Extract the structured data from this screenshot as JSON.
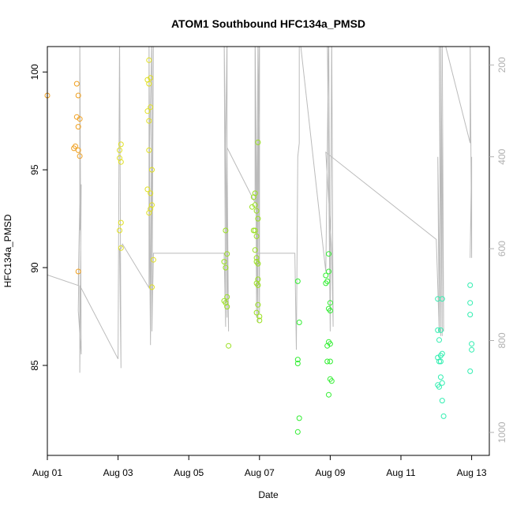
{
  "chart_data": {
    "type": "scatter",
    "title": "ATOM1 Southbound HFC134a_PMSD",
    "xlabel": "Date",
    "ylabel": "HFC134a_PMSD",
    "xlim": [
      "2016-08-01 00:00",
      "2016-08-13 12:00"
    ],
    "ylim": [
      80.4,
      101.3
    ],
    "x_ticks": [
      {
        "x": "2016-08-01",
        "label": "Aug 01"
      },
      {
        "x": "2016-08-03",
        "label": "Aug 03"
      },
      {
        "x": "2016-08-05",
        "label": "Aug 05"
      },
      {
        "x": "2016-08-07",
        "label": "Aug 07"
      },
      {
        "x": "2016-08-09",
        "label": "Aug 09"
      },
      {
        "x": "2016-08-11",
        "label": "Aug 11"
      },
      {
        "x": "2016-08-13",
        "label": "Aug 13"
      }
    ],
    "y_ticks": [
      85,
      90,
      95,
      100
    ],
    "y2_ticks": [
      200,
      400,
      600,
      800,
      1000
    ],
    "y2lim": [
      160,
      1050
    ],
    "grid": false,
    "legend": "none",
    "series": [
      {
        "color": "#f0a020",
        "points": [
          [
            "2016-08-01 00:00",
            98.8
          ],
          [
            "2016-08-01 20:00",
            99.4
          ],
          [
            "2016-08-01 21:00",
            98.8
          ],
          [
            "2016-08-01 20:00",
            97.7
          ],
          [
            "2016-08-01 22:00",
            97.6
          ],
          [
            "2016-08-01 21:00",
            97.2
          ],
          [
            "2016-08-01 19:00",
            96.2
          ],
          [
            "2016-08-01 18:00",
            96.1
          ],
          [
            "2016-08-01 21:00",
            96.0
          ],
          [
            "2016-08-01 22:00",
            95.7
          ],
          [
            "2016-08-01 21:00",
            89.8
          ]
        ]
      },
      {
        "color": "#e0e020",
        "points": [
          [
            "2016-08-03 02:00",
            96.3
          ],
          [
            "2016-08-03 01:00",
            96.0
          ],
          [
            "2016-08-03 01:00",
            95.6
          ],
          [
            "2016-08-03 02:00",
            95.4
          ],
          [
            "2016-08-03 02:00",
            92.3
          ],
          [
            "2016-08-03 01:00",
            91.9
          ],
          [
            "2016-08-03 02:00",
            91.0
          ],
          [
            "2016-08-03 21:00",
            100.6
          ],
          [
            "2016-08-03 22:00",
            99.7
          ],
          [
            "2016-08-03 20:00",
            99.6
          ],
          [
            "2016-08-03 21:00",
            99.4
          ],
          [
            "2016-08-03 22:00",
            98.2
          ],
          [
            "2016-08-03 20:00",
            98.0
          ],
          [
            "2016-08-03 21:00",
            97.5
          ],
          [
            "2016-08-03 21:00",
            96.0
          ],
          [
            "2016-08-03 23:00",
            95.0
          ],
          [
            "2016-08-03 20:00",
            94.0
          ],
          [
            "2016-08-03 22:00",
            93.8
          ],
          [
            "2016-08-03 23:00",
            93.2
          ],
          [
            "2016-08-03 22:00",
            93.0
          ],
          [
            "2016-08-03 21:00",
            92.8
          ],
          [
            "2016-08-04 00:00",
            90.4
          ],
          [
            "2016-08-03 23:00",
            89.0
          ]
        ]
      },
      {
        "color": "#9ae020",
        "points": [
          [
            "2016-08-06 01:00",
            91.9
          ],
          [
            "2016-08-06 02:00",
            90.7
          ],
          [
            "2016-08-06 00:00",
            90.3
          ],
          [
            "2016-08-06 01:00",
            90.0
          ],
          [
            "2016-08-06 02:00",
            88.5
          ],
          [
            "2016-08-06 00:00",
            88.3
          ],
          [
            "2016-08-06 01:00",
            88.2
          ],
          [
            "2016-08-06 02:00",
            88.0
          ],
          [
            "2016-08-06 03:00",
            86.0
          ],
          [
            "2016-08-06 23:00",
            96.4
          ],
          [
            "2016-08-06 21:00",
            93.8
          ],
          [
            "2016-08-06 20:00",
            93.6
          ],
          [
            "2016-08-06 21:00",
            93.2
          ],
          [
            "2016-08-06 19:00",
            93.1
          ],
          [
            "2016-08-06 22:00",
            92.9
          ],
          [
            "2016-08-06 23:00",
            92.5
          ],
          [
            "2016-08-06 20:00",
            91.9
          ],
          [
            "2016-08-06 21:00",
            91.9
          ],
          [
            "2016-08-06 22:00",
            91.6
          ],
          [
            "2016-08-06 21:00",
            90.9
          ],
          [
            "2016-08-06 22:00",
            90.5
          ],
          [
            "2016-08-06 22:00",
            90.3
          ],
          [
            "2016-08-06 23:00",
            90.2
          ],
          [
            "2016-08-06 23:00",
            89.4
          ],
          [
            "2016-08-06 22:00",
            89.2
          ],
          [
            "2016-08-06 23:00",
            89.1
          ],
          [
            "2016-08-06 23:00",
            88.1
          ],
          [
            "2016-08-06 22:00",
            87.7
          ],
          [
            "2016-08-07 00:00",
            87.5
          ],
          [
            "2016-08-07 00:00",
            87.3
          ]
        ]
      },
      {
        "color": "#30ee30",
        "points": [
          [
            "2016-08-08 02:00",
            89.3
          ],
          [
            "2016-08-08 03:00",
            87.2
          ],
          [
            "2016-08-08 02:00",
            85.3
          ],
          [
            "2016-08-08 02:00",
            85.1
          ],
          [
            "2016-08-08 03:00",
            82.3
          ],
          [
            "2016-08-08 02:00",
            81.6
          ],
          [
            "2016-08-08 23:00",
            90.7
          ],
          [
            "2016-08-08 23:00",
            89.8
          ],
          [
            "2016-08-08 21:00",
            89.6
          ],
          [
            "2016-08-08 22:00",
            89.3
          ],
          [
            "2016-08-08 21:00",
            89.2
          ],
          [
            "2016-08-09 00:00",
            88.2
          ],
          [
            "2016-08-08 23:00",
            87.9
          ],
          [
            "2016-08-09 00:00",
            87.8
          ],
          [
            "2016-08-08 23:00",
            86.2
          ],
          [
            "2016-08-09 00:00",
            86.1
          ],
          [
            "2016-08-08 22:00",
            86.0
          ],
          [
            "2016-08-08 22:00",
            85.2
          ],
          [
            "2016-08-09 00:00",
            85.2
          ],
          [
            "2016-08-09 00:00",
            84.3
          ],
          [
            "2016-08-09 01:00",
            84.2
          ],
          [
            "2016-08-08 23:00",
            83.5
          ]
        ]
      },
      {
        "color": "#30eeb0",
        "points": [
          [
            "2016-08-12 01:00",
            88.4
          ],
          [
            "2016-08-12 04:00",
            88.4
          ],
          [
            "2016-08-12 01:00",
            86.8
          ],
          [
            "2016-08-12 03:00",
            86.8
          ],
          [
            "2016-08-12 02:00",
            86.3
          ],
          [
            "2016-08-12 04:00",
            85.6
          ],
          [
            "2016-08-12 03:00",
            85.5
          ],
          [
            "2016-08-12 01:00",
            85.4
          ],
          [
            "2016-08-12 03:00",
            85.2
          ],
          [
            "2016-08-12 02:00",
            85.2
          ],
          [
            "2016-08-12 03:00",
            84.4
          ],
          [
            "2016-08-12 04:00",
            84.1
          ],
          [
            "2016-08-12 01:00",
            84.0
          ],
          [
            "2016-08-12 02:00",
            83.9
          ],
          [
            "2016-08-12 04:00",
            83.2
          ],
          [
            "2016-08-12 05:00",
            82.4
          ],
          [
            "2016-08-12 23:00",
            89.1
          ],
          [
            "2016-08-12 23:00",
            88.2
          ],
          [
            "2016-08-12 23:00",
            87.6
          ],
          [
            "2016-08-13 00:00",
            86.1
          ],
          [
            "2016-08-13 00:00",
            85.8
          ],
          [
            "2016-08-12 23:00",
            84.7
          ]
        ]
      }
    ],
    "secondary_line": {
      "color": "#bbbbbb",
      "axis": "right",
      "points": [
        [
          "2016-08-01 00:00",
          657
        ],
        [
          "2016-08-01 21:00",
          680
        ],
        [
          "2016-08-01 22:00",
          500
        ],
        [
          "2016-08-01 21:00",
          735
        ],
        [
          "2016-08-01 23:00",
          830
        ],
        [
          "2016-08-01 22:00",
          130
        ],
        [
          "2016-08-01 22:00",
          560
        ],
        [
          "2016-08-01 23:00",
          460
        ],
        [
          "2016-08-01 22:00",
          870
        ],
        [
          "2016-08-01 22:00",
          680
        ],
        [
          "2016-08-03 00:00",
          840
        ],
        [
          "2016-08-03 01:00",
          130
        ],
        [
          "2016-08-03 02:00",
          860
        ],
        [
          "2016-08-03 01:00",
          600
        ],
        [
          "2016-08-03 02:00",
          600
        ],
        [
          "2016-08-03 03:00",
          590
        ],
        [
          "2016-08-03 21:00",
          685
        ],
        [
          "2016-08-03 21:00",
          130
        ],
        [
          "2016-08-03 22:00",
          810
        ],
        [
          "2016-08-03 21:00",
          450
        ],
        [
          "2016-08-03 23:00",
          130
        ],
        [
          "2016-08-03 22:00",
          800
        ],
        [
          "2016-08-04 00:00",
          130
        ],
        [
          "2016-08-03 23:00",
          780
        ],
        [
          "2016-08-04 00:00",
          610
        ],
        [
          "2016-08-06 00:00",
          610
        ],
        [
          "2016-08-06 01:00",
          770
        ],
        [
          "2016-08-06 00:00",
          130
        ],
        [
          "2016-08-06 02:00",
          750
        ],
        [
          "2016-08-06 02:00",
          130
        ],
        [
          "2016-08-06 01:00",
          380
        ],
        [
          "2016-08-06 03:00",
          780
        ],
        [
          "2016-08-06 02:00",
          380
        ],
        [
          "2016-08-06 21:00",
          500
        ],
        [
          "2016-08-06 21:00",
          130
        ],
        [
          "2016-08-06 22:00",
          740
        ],
        [
          "2016-08-06 21:00",
          130
        ],
        [
          "2016-08-06 23:00",
          760
        ],
        [
          "2016-08-06 23:00",
          130
        ],
        [
          "2016-08-06 22:00",
          750
        ],
        [
          "2016-08-07 00:00",
          130
        ],
        [
          "2016-08-07 00:00",
          740
        ],
        [
          "2016-08-06 23:00",
          130
        ],
        [
          "2016-08-07 00:00",
          640
        ],
        [
          "2016-08-06 22:00",
          610
        ],
        [
          "2016-08-06 23:00",
          610
        ],
        [
          "2016-08-08 00:00",
          610
        ],
        [
          "2016-08-08 01:00",
          820
        ],
        [
          "2016-08-08 02:00",
          400
        ],
        [
          "2016-08-08 03:00",
          370
        ],
        [
          "2016-08-08 03:00",
          130
        ],
        [
          "2016-08-08 21:00",
          650
        ],
        [
          "2016-08-08 23:00",
          130
        ],
        [
          "2016-08-09 00:00",
          780
        ],
        [
          "2016-08-08 22:00",
          130
        ],
        [
          "2016-08-09 00:00",
          780
        ],
        [
          "2016-08-09 01:00",
          130
        ],
        [
          "2016-08-09 02:00",
          770
        ],
        [
          "2016-08-09 01:00",
          600
        ],
        [
          "2016-08-08 21:00",
          390
        ],
        [
          "2016-08-12 00:00",
          580
        ],
        [
          "2016-08-12 02:00",
          780
        ],
        [
          "2016-08-12 01:00",
          400
        ],
        [
          "2016-08-12 03:00",
          790
        ],
        [
          "2016-08-12 02:00",
          130
        ],
        [
          "2016-08-12 04:00",
          790
        ],
        [
          "2016-08-12 03:00",
          130
        ],
        [
          "2016-08-12 05:00",
          780
        ],
        [
          "2016-08-12 04:00",
          130
        ],
        [
          "2016-08-12 23:00",
          370
        ],
        [
          "2016-08-12 23:00",
          130
        ],
        [
          "2016-08-13 00:00",
          620
        ],
        [
          "2016-08-13 00:00",
          400
        ],
        [
          "2016-08-12 23:00",
          620
        ]
      ]
    }
  }
}
